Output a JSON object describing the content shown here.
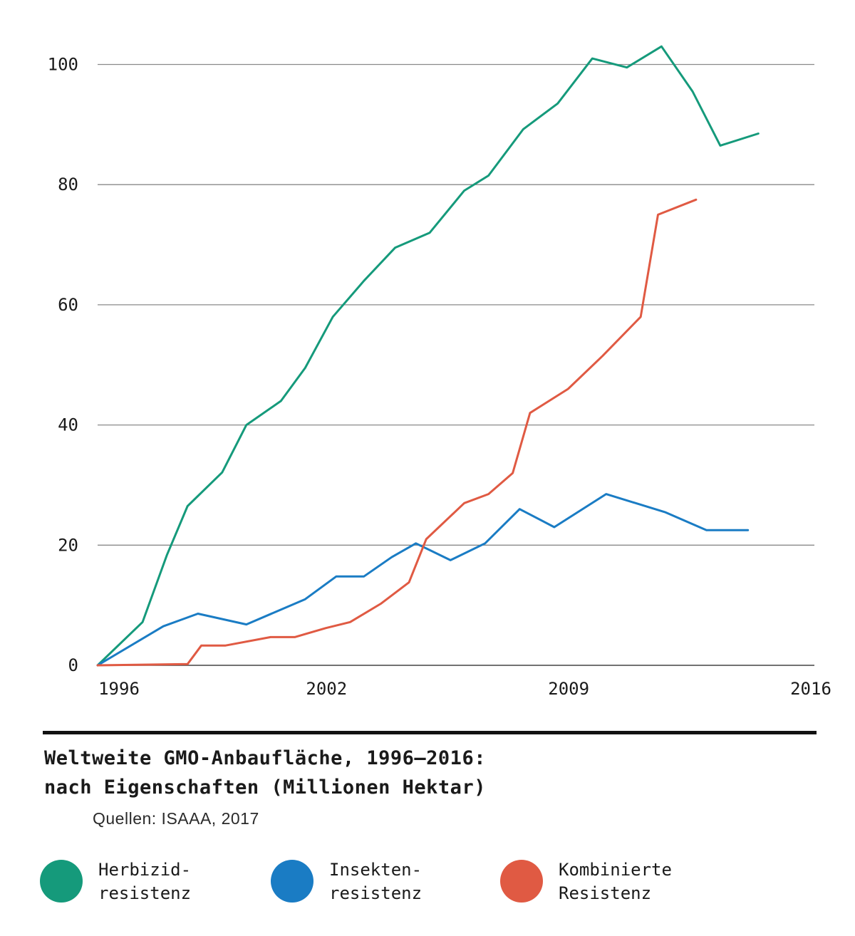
{
  "chart_data": {
    "type": "line",
    "title_lines": [
      "Weltweite GMO-Anbaufläche, 1996–2016:",
      "nach Eigenschaften (Millionen Hektar)"
    ],
    "source": "Quellen: ISAAA, 2017",
    "x_tick_labels": [
      "1996",
      "2002",
      "2009",
      "2016"
    ],
    "y_tick_labels": [
      "0",
      "20",
      "40",
      "60",
      "80",
      "100"
    ],
    "ylim": [
      0,
      103
    ],
    "grid": true,
    "legend_position": "bottom",
    "series": [
      {
        "key": "herbizid",
        "label_lines": [
          "Herbizid-",
          "resistenz"
        ],
        "color": "#159a7b",
        "points": [
          [
            1996.0,
            0
          ],
          [
            1997.3,
            7.2
          ],
          [
            1998.0,
            18.3
          ],
          [
            1998.6,
            26.5
          ],
          [
            1999.6,
            32.1
          ],
          [
            2000.3,
            40.0
          ],
          [
            2001.3,
            44.0
          ],
          [
            2002.0,
            49.5
          ],
          [
            2002.8,
            58.0
          ],
          [
            2003.7,
            64.0
          ],
          [
            2004.6,
            69.5
          ],
          [
            2005.6,
            72.0
          ],
          [
            2006.6,
            79.0
          ],
          [
            2007.3,
            81.5
          ],
          [
            2008.3,
            89.2
          ],
          [
            2009.3,
            93.5
          ],
          [
            2010.3,
            101.0
          ],
          [
            2011.3,
            99.5
          ],
          [
            2012.3,
            103.0
          ],
          [
            2013.2,
            95.5
          ],
          [
            2014.0,
            86.5
          ],
          [
            2015.1,
            88.5
          ]
        ]
      },
      {
        "key": "insekten",
        "label_lines": [
          "Insekten-",
          "resistenz"
        ],
        "color": "#1a7cc4",
        "points": [
          [
            1996.0,
            0
          ],
          [
            1997.9,
            6.5
          ],
          [
            1998.9,
            8.6
          ],
          [
            2000.3,
            6.8
          ],
          [
            2002.0,
            11.0
          ],
          [
            2002.9,
            14.8
          ],
          [
            2003.7,
            14.8
          ],
          [
            2004.5,
            18.0
          ],
          [
            2005.2,
            20.3
          ],
          [
            2006.2,
            17.5
          ],
          [
            2007.2,
            20.3
          ],
          [
            2008.2,
            26.0
          ],
          [
            2009.2,
            23.0
          ],
          [
            2010.7,
            28.5
          ],
          [
            2012.4,
            25.5
          ],
          [
            2013.6,
            22.5
          ],
          [
            2014.8,
            22.5
          ]
        ]
      },
      {
        "key": "kombiniert",
        "label_lines": [
          "Kombinierte",
          "Resistenz"
        ],
        "color": "#e05a43",
        "points": [
          [
            1996.0,
            0
          ],
          [
            1998.6,
            0.2
          ],
          [
            1999.0,
            3.3
          ],
          [
            1999.7,
            3.3
          ],
          [
            2001.0,
            4.7
          ],
          [
            2001.7,
            4.7
          ],
          [
            2002.6,
            6.2
          ],
          [
            2003.3,
            7.2
          ],
          [
            2004.2,
            10.3
          ],
          [
            2005.0,
            13.8
          ],
          [
            2005.5,
            21.0
          ],
          [
            2006.6,
            27.0
          ],
          [
            2007.3,
            28.5
          ],
          [
            2008.0,
            32.0
          ],
          [
            2008.5,
            42.0
          ],
          [
            2009.6,
            46.0
          ],
          [
            2010.6,
            51.5
          ],
          [
            2011.7,
            58.0
          ],
          [
            2012.2,
            75.0
          ],
          [
            2013.3,
            77.5
          ]
        ]
      }
    ]
  }
}
